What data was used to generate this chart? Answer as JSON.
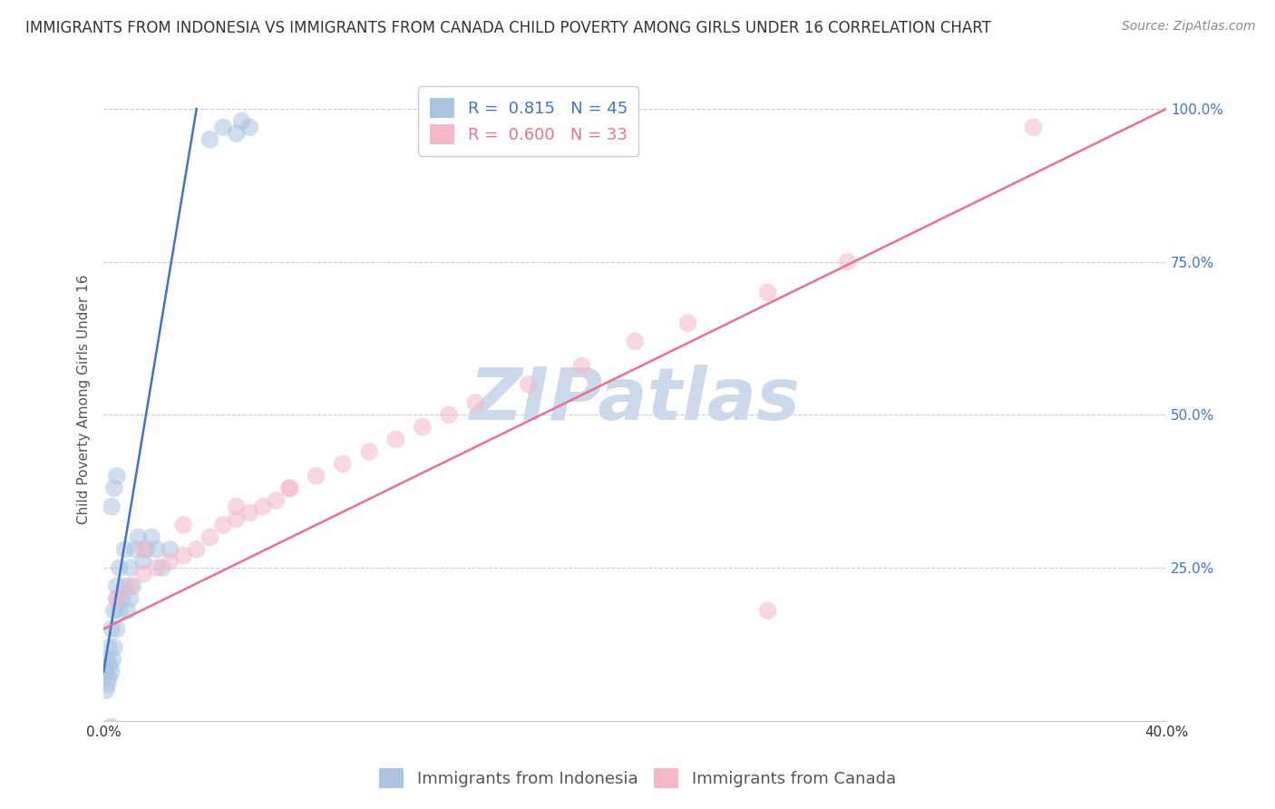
{
  "title": "IMMIGRANTS FROM INDONESIA VS IMMIGRANTS FROM CANADA CHILD POVERTY AMONG GIRLS UNDER 16 CORRELATION CHART",
  "source": "Source: ZipAtlas.com",
  "ylabel": "Child Poverty Among Girls Under 16",
  "xlim": [
    0.0,
    40.0
  ],
  "ylim": [
    0.0,
    105.0
  ],
  "yticks": [
    0.0,
    25.0,
    50.0,
    75.0,
    100.0
  ],
  "ytick_labels_right": [
    "",
    "25.0%",
    "50.0%",
    "75.0%",
    "100.0%"
  ],
  "xtick_positions": [
    0,
    10,
    20,
    30,
    40
  ],
  "xtick_labels": [
    "0.0%",
    "",
    "",
    "",
    "40.0%"
  ],
  "legend_entries": [
    {
      "label": "R =  0.815   N = 45",
      "color": "#aac4e2",
      "line_color": "#4472c4"
    },
    {
      "label": "R =  0.600   N = 33",
      "color": "#f4b8c8",
      "line_color": "#e87090"
    }
  ],
  "watermark_text": "ZIPatlas",
  "watermark_color": "#ccd9ea",
  "background_color": "#ffffff",
  "grid_color": "#cccccc",
  "indonesia_scatter_x": [
    0.1,
    0.1,
    0.15,
    0.15,
    0.2,
    0.2,
    0.25,
    0.3,
    0.3,
    0.35,
    0.4,
    0.4,
    0.5,
    0.5,
    0.5,
    0.6,
    0.6,
    0.7,
    0.8,
    0.8,
    0.9,
    1.0,
    1.0,
    1.1,
    1.2,
    1.3,
    1.5,
    1.6,
    1.8,
    2.0,
    2.2,
    2.5,
    0.3,
    0.4,
    0.5,
    4.0,
    4.5,
    5.0,
    5.2,
    5.5,
    0.2,
    0.2,
    0.3,
    0.5,
    0.7
  ],
  "indonesia_scatter_y": [
    5.0,
    8.0,
    6.0,
    10.0,
    7.0,
    12.0,
    9.0,
    8.0,
    15.0,
    10.0,
    12.0,
    18.0,
    15.0,
    20.0,
    22.0,
    18.0,
    25.0,
    20.0,
    22.0,
    28.0,
    18.0,
    20.0,
    25.0,
    22.0,
    28.0,
    30.0,
    26.0,
    28.0,
    30.0,
    28.0,
    25.0,
    28.0,
    35.0,
    38.0,
    40.0,
    95.0,
    97.0,
    96.0,
    98.0,
    97.0,
    -2.0,
    -3.0,
    -1.0,
    -4.0,
    -2.0
  ],
  "canada_scatter_x": [
    0.5,
    1.0,
    1.5,
    2.0,
    2.5,
    3.0,
    3.5,
    4.0,
    4.5,
    5.0,
    5.5,
    6.0,
    6.5,
    7.0,
    8.0,
    9.0,
    10.0,
    11.0,
    12.0,
    13.0,
    14.0,
    16.0,
    18.0,
    20.0,
    22.0,
    25.0,
    28.0,
    1.5,
    3.0,
    5.0,
    7.0,
    25.0,
    35.0
  ],
  "canada_scatter_y": [
    20.0,
    22.0,
    24.0,
    25.0,
    26.0,
    27.0,
    28.0,
    30.0,
    32.0,
    33.0,
    34.0,
    35.0,
    36.0,
    38.0,
    40.0,
    42.0,
    44.0,
    46.0,
    48.0,
    50.0,
    52.0,
    55.0,
    58.0,
    62.0,
    65.0,
    70.0,
    75.0,
    28.0,
    32.0,
    35.0,
    38.0,
    18.0,
    97.0
  ],
  "indonesia_line_x": [
    0.0,
    3.5
  ],
  "indonesia_line_y": [
    8.0,
    100.0
  ],
  "canada_line_x": [
    0.0,
    40.0
  ],
  "canada_line_y": [
    15.0,
    100.0
  ],
  "scatter_size": 200,
  "scatter_alpha": 0.55,
  "line_width": 1.8,
  "indonesia_dot_color": "#aac4e2",
  "indonesia_line_color": "#4472c4",
  "canada_dot_color": "#f4b8c8",
  "canada_line_color": "#e87090",
  "title_fontsize": 12,
  "source_fontsize": 10,
  "axis_label_fontsize": 11,
  "tick_fontsize": 11,
  "legend_fontsize": 13,
  "ytick_color": "#4472c4"
}
